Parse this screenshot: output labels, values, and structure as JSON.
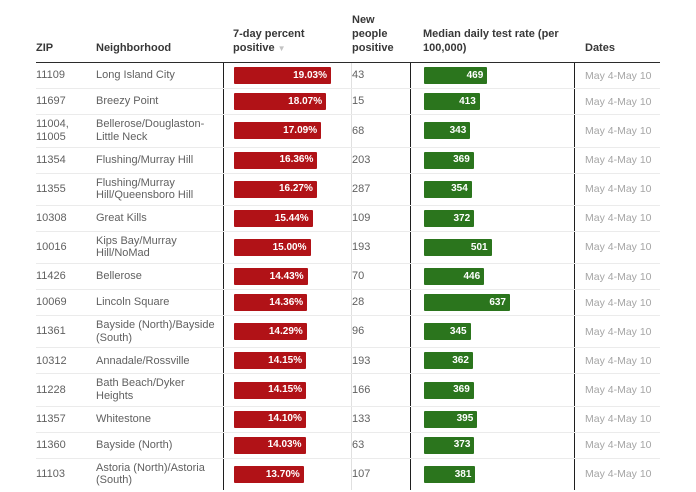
{
  "colors": {
    "positive_bar": "#b11217",
    "test_rate_bar": "#2b751d",
    "header_rule": "#2b2b2b"
  },
  "sort": {
    "column": "7-day percent positive",
    "direction": "descending",
    "icon": "▼"
  },
  "chart_data": {
    "type": "table",
    "title": "",
    "columns": [
      "ZIP",
      "Neighborhood",
      "7-day percent positive",
      "New people positive",
      "Median daily test rate (per 100,000)",
      "Dates"
    ],
    "percent_positive_axis_max": 19.03,
    "test_rate_axis_max": 637,
    "legend_position": "none",
    "grid": "off",
    "rows": [
      {
        "zip": "11109",
        "neighborhood": "Long Island City",
        "percent_positive": 19.03,
        "percent_positive_label": "19.03%",
        "new_people_positive": 43,
        "median_daily_test_rate": 469,
        "dates": "May 4-May 10"
      },
      {
        "zip": "11697",
        "neighborhood": "Breezy Point",
        "percent_positive": 18.07,
        "percent_positive_label": "18.07%",
        "new_people_positive": 15,
        "median_daily_test_rate": 413,
        "dates": "May 4-May 10"
      },
      {
        "zip": "11004, 11005",
        "neighborhood": "Bellerose/Douglaston-Little Neck",
        "percent_positive": 17.09,
        "percent_positive_label": "17.09%",
        "new_people_positive": 68,
        "median_daily_test_rate": 343,
        "dates": "May 4-May 10"
      },
      {
        "zip": "11354",
        "neighborhood": "Flushing/Murray Hill",
        "percent_positive": 16.36,
        "percent_positive_label": "16.36%",
        "new_people_positive": 203,
        "median_daily_test_rate": 369,
        "dates": "May 4-May 10"
      },
      {
        "zip": "11355",
        "neighborhood": "Flushing/Murray Hill/Queensboro Hill",
        "percent_positive": 16.27,
        "percent_positive_label": "16.27%",
        "new_people_positive": 287,
        "median_daily_test_rate": 354,
        "dates": "May 4-May 10"
      },
      {
        "zip": "10308",
        "neighborhood": "Great Kills",
        "percent_positive": 15.44,
        "percent_positive_label": "15.44%",
        "new_people_positive": 109,
        "median_daily_test_rate": 372,
        "dates": "May 4-May 10"
      },
      {
        "zip": "10016",
        "neighborhood": "Kips Bay/Murray Hill/NoMad",
        "percent_positive": 15.0,
        "percent_positive_label": "15.00%",
        "new_people_positive": 193,
        "median_daily_test_rate": 501,
        "dates": "May 4-May 10"
      },
      {
        "zip": "11426",
        "neighborhood": "Bellerose",
        "percent_positive": 14.43,
        "percent_positive_label": "14.43%",
        "new_people_positive": 70,
        "median_daily_test_rate": 446,
        "dates": "May 4-May 10"
      },
      {
        "zip": "10069",
        "neighborhood": "Lincoln Square",
        "percent_positive": 14.36,
        "percent_positive_label": "14.36%",
        "new_people_positive": 28,
        "median_daily_test_rate": 637,
        "dates": "May 4-May 10"
      },
      {
        "zip": "11361",
        "neighborhood": "Bayside (North)/Bayside (South)",
        "percent_positive": 14.29,
        "percent_positive_label": "14.29%",
        "new_people_positive": 96,
        "median_daily_test_rate": 345,
        "dates": "May 4-May 10"
      },
      {
        "zip": "10312",
        "neighborhood": "Annadale/Rossville",
        "percent_positive": 14.15,
        "percent_positive_label": "14.15%",
        "new_people_positive": 193,
        "median_daily_test_rate": 362,
        "dates": "May 4-May 10"
      },
      {
        "zip": "11228",
        "neighborhood": "Bath Beach/Dyker Heights",
        "percent_positive": 14.15,
        "percent_positive_label": "14.15%",
        "new_people_positive": 166,
        "median_daily_test_rate": 369,
        "dates": "May 4-May 10"
      },
      {
        "zip": "11357",
        "neighborhood": "Whitestone",
        "percent_positive": 14.1,
        "percent_positive_label": "14.10%",
        "new_people_positive": 133,
        "median_daily_test_rate": 395,
        "dates": "May 4-May 10"
      },
      {
        "zip": "11360",
        "neighborhood": "Bayside (North)",
        "percent_positive": 14.03,
        "percent_positive_label": "14.03%",
        "new_people_positive": 63,
        "median_daily_test_rate": 373,
        "dates": "May 4-May 10"
      },
      {
        "zip": "11103",
        "neighborhood": "Astoria (North)/Astoria (South)",
        "percent_positive": 13.7,
        "percent_positive_label": "13.70%",
        "new_people_positive": 107,
        "median_daily_test_rate": 381,
        "dates": "May 4-May 10"
      }
    ]
  }
}
